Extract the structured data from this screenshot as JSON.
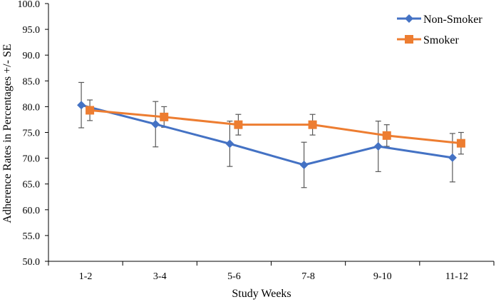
{
  "chart_data": {
    "type": "line",
    "title": "",
    "xlabel": "Study Weeks",
    "ylabel": "Adherence Rates in Percentages +/- SE",
    "categories": [
      "1-2",
      "3-4",
      "5-6",
      "7-8",
      "9-10",
      "11-12"
    ],
    "ylim": [
      50.0,
      100.0
    ],
    "yticks": [
      "50.0",
      "55.0",
      "60.0",
      "65.0",
      "70.0",
      "75.0",
      "80.0",
      "85.0",
      "90.0",
      "95.0",
      "100.0"
    ],
    "grid": false,
    "legend_position": "top-right",
    "series": [
      {
        "name": "Non-Smoker",
        "color": "#4472C4",
        "marker": "diamond",
        "values": [
          80.3,
          76.6,
          72.8,
          68.7,
          72.3,
          70.1
        ],
        "error": [
          4.4,
          4.4,
          4.4,
          4.4,
          4.9,
          4.7
        ]
      },
      {
        "name": "Smoker",
        "color": "#ED7D31",
        "marker": "square",
        "values": [
          79.3,
          78.0,
          76.5,
          76.5,
          74.4,
          72.9
        ],
        "error": [
          2.0,
          2.0,
          2.0,
          2.0,
          2.1,
          2.1
        ]
      }
    ],
    "error_bar_color": "#595959",
    "axis_color": "#000000"
  }
}
